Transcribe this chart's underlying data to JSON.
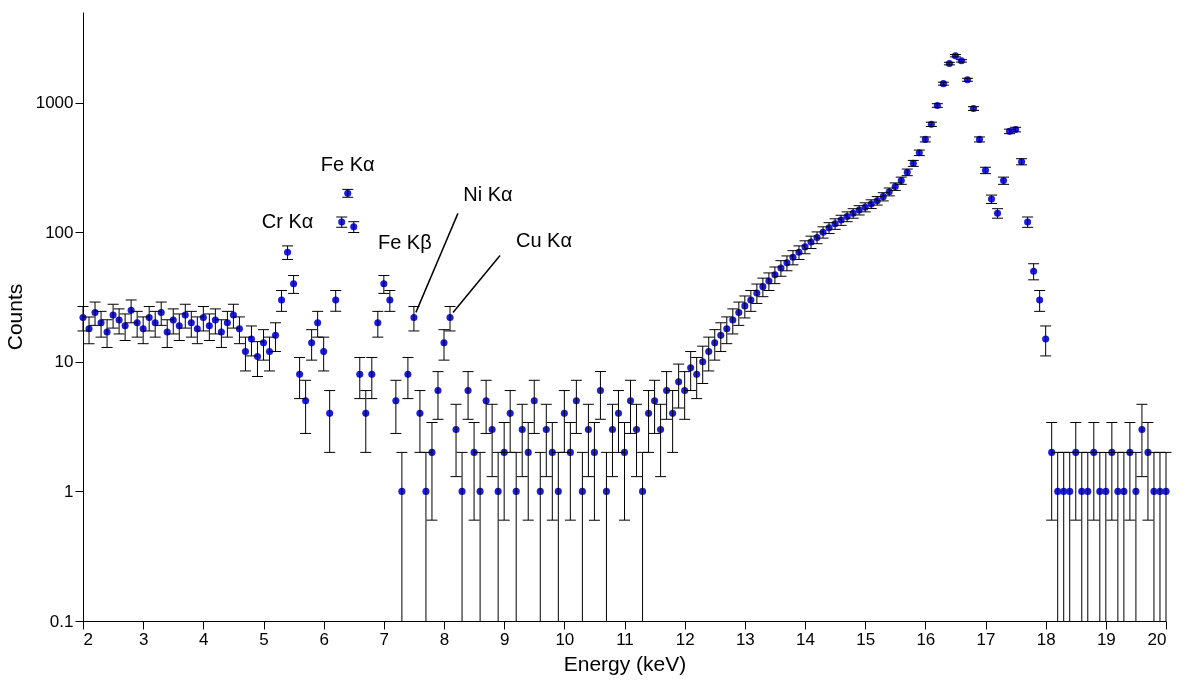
{
  "chart_data": {
    "type": "scatter",
    "xlabel": "Energy (keV)",
    "ylabel": "Counts",
    "log": "y",
    "marker": "circle",
    "xlim": [
      2,
      20
    ],
    "xticks": [
      2,
      3,
      4,
      5,
      6,
      7,
      8,
      9,
      10,
      11,
      12,
      13,
      14,
      15,
      16,
      17,
      18,
      19,
      20
    ],
    "ylim": [
      0.1,
      5000
    ],
    "yticks": [
      0.1,
      1,
      10,
      100,
      1000
    ],
    "x": [
      2.0,
      2.1,
      2.2,
      2.3,
      2.4,
      2.5,
      2.6,
      2.7,
      2.8,
      2.9,
      3.0,
      3.1,
      3.2,
      3.3,
      3.4,
      3.5,
      3.6,
      3.7,
      3.8,
      3.9,
      4.0,
      4.1,
      4.2,
      4.3,
      4.4,
      4.5,
      4.6,
      4.7,
      4.8,
      4.9,
      5.0,
      5.1,
      5.2,
      5.3,
      5.4,
      5.5,
      5.6,
      5.7,
      5.8,
      5.9,
      6.0,
      6.1,
      6.2,
      6.3,
      6.4,
      6.5,
      6.6,
      6.7,
      6.8,
      6.9,
      7.0,
      7.1,
      7.2,
      7.3,
      7.4,
      7.5,
      7.6,
      7.7,
      7.8,
      7.9,
      8.0,
      8.1,
      8.2,
      8.3,
      8.4,
      8.5,
      8.6,
      8.7,
      8.8,
      8.9,
      9.0,
      9.1,
      9.2,
      9.3,
      9.4,
      9.5,
      9.6,
      9.7,
      9.8,
      9.9,
      10.0,
      10.1,
      10.2,
      10.3,
      10.4,
      10.5,
      10.6,
      10.7,
      10.8,
      10.9,
      11.0,
      11.1,
      11.2,
      11.3,
      11.4,
      11.5,
      11.6,
      11.7,
      11.8,
      11.9,
      12.0,
      12.1,
      12.2,
      12.3,
      12.4,
      12.5,
      12.6,
      12.7,
      12.8,
      12.9,
      13.0,
      13.1,
      13.2,
      13.3,
      13.4,
      13.5,
      13.6,
      13.7,
      13.8,
      13.9,
      14.0,
      14.1,
      14.2,
      14.3,
      14.4,
      14.5,
      14.6,
      14.7,
      14.8,
      14.9,
      15.0,
      15.1,
      15.2,
      15.3,
      15.4,
      15.5,
      15.6,
      15.7,
      15.8,
      15.9,
      16.0,
      16.1,
      16.2,
      16.3,
      16.4,
      16.5,
      16.6,
      16.7,
      16.8,
      16.9,
      17.0,
      17.1,
      17.2,
      17.3,
      17.4,
      17.5,
      17.6,
      17.7,
      17.8,
      17.9,
      18.0,
      18.1,
      18.2,
      18.3,
      18.4,
      18.5,
      18.6,
      18.7,
      18.8,
      18.9,
      19.0,
      19.1,
      19.2,
      19.3,
      19.4,
      19.5,
      19.6,
      19.7,
      19.8,
      19.9,
      20.0
    ],
    "series": [
      {
        "color": "#1c1cdc",
        "values": [
          22,
          18,
          24,
          20,
          17,
          23,
          21,
          19,
          25,
          20,
          18,
          22,
          20,
          24,
          17,
          21,
          19,
          23,
          20,
          18,
          22,
          19,
          21,
          17,
          20,
          23,
          18,
          12,
          15,
          11,
          14,
          12,
          16,
          30,
          70,
          40,
          8,
          5,
          14,
          20,
          12,
          4,
          30,
          120,
          200,
          110,
          8,
          4,
          8,
          20,
          40,
          30,
          5,
          1,
          8,
          22,
          4,
          1,
          2,
          6,
          14,
          22,
          3,
          1,
          6,
          2,
          1,
          5,
          3,
          1,
          2,
          4,
          1,
          3,
          2,
          5,
          1,
          3,
          2,
          1,
          4,
          2,
          5,
          1,
          3,
          2,
          6,
          1,
          3,
          4,
          2,
          5,
          3,
          1,
          4,
          5,
          3,
          6,
          4,
          7,
          6,
          9,
          8,
          10,
          12,
          14,
          16,
          18,
          21,
          24,
          27,
          30,
          34,
          38,
          42,
          47,
          53,
          58,
          64,
          70,
          77,
          84,
          91,
          100,
          108,
          116,
          124,
          132,
          140,
          148,
          156,
          165,
          175,
          188,
          205,
          225,
          250,
          290,
          340,
          410,
          520,
          680,
          950,
          1400,
          2000,
          2300,
          2100,
          1500,
          900,
          520,
          300,
          180,
          140,
          250,
          600,
          620,
          350,
          120,
          50,
          30,
          15,
          2,
          1,
          1,
          1,
          2,
          1,
          1,
          2,
          1,
          1,
          2,
          1,
          1,
          2,
          1,
          3,
          2,
          1,
          1,
          1
        ],
        "errors": [
          4.7,
          4.2,
          4.9,
          4.5,
          4.1,
          4.8,
          4.6,
          4.4,
          5,
          4.5,
          4.2,
          4.7,
          4.5,
          4.9,
          4.1,
          4.6,
          4.4,
          4.8,
          4.5,
          4.2,
          4.7,
          4.4,
          4.6,
          4.1,
          4.5,
          4.8,
          4.2,
          3.5,
          3.9,
          3.3,
          3.7,
          3.5,
          4,
          5.5,
          8.4,
          6.3,
          2.8,
          2.2,
          3.7,
          4.5,
          3.5,
          2,
          5.5,
          11,
          14,
          10.5,
          2.8,
          2,
          2.8,
          4.5,
          6.3,
          5.5,
          2.2,
          [
            0.1,
            2
          ],
          2.8,
          4.7,
          2,
          [
            0.1,
            2
          ],
          1.4,
          2.4,
          3.7,
          4.7,
          1.7,
          [
            0.1,
            2
          ],
          2.4,
          1.4,
          [
            0.1,
            2
          ],
          2.2,
          1.7,
          [
            0.1,
            2
          ],
          1.4,
          2,
          [
            0.1,
            2
          ],
          1.7,
          1.4,
          2.2,
          [
            0.1,
            2
          ],
          1.7,
          1.4,
          [
            0.1,
            2
          ],
          2,
          1.4,
          2.2,
          [
            0.1,
            2
          ],
          1.7,
          1.4,
          2.4,
          [
            0.1,
            2
          ],
          1.7,
          2,
          1.4,
          2.2,
          1.7,
          [
            0.1,
            2
          ],
          2,
          2.2,
          1.7,
          2.4,
          2,
          2.6,
          2.4,
          3,
          2.8,
          3.2,
          3.5,
          3.7,
          4,
          4.2,
          4.6,
          4.9,
          5.2,
          5.5,
          5.8,
          6.2,
          6.5,
          6.9,
          7.3,
          7.6,
          8,
          8.4,
          8.8,
          9.2,
          9.5,
          10,
          10.4,
          10.8,
          11.1,
          11.5,
          11.8,
          12.2,
          12.5,
          12.8,
          13.2,
          13.7,
          14.3,
          15,
          16,
          17,
          18,
          20,
          23,
          26,
          31,
          37,
          45,
          48,
          46,
          39,
          30,
          23,
          17,
          13.4,
          11.8,
          16,
          24,
          25,
          19,
          11,
          7.1,
          5.5,
          3.9,
          1.4,
          [
            0.1,
            2
          ],
          [
            0.1,
            2
          ],
          [
            0.1,
            2
          ],
          1.4,
          [
            0.1,
            2
          ],
          [
            0.1,
            2
          ],
          1.4,
          [
            0.1,
            2
          ],
          [
            0.1,
            2
          ],
          1.4,
          [
            0.1,
            2
          ],
          [
            0.1,
            2
          ],
          1.4,
          [
            0.1,
            2
          ],
          1.7,
          1.4,
          [
            0.1,
            2
          ],
          [
            0.1,
            2
          ],
          [
            0.1,
            2
          ]
        ]
      }
    ],
    "annotations": [
      {
        "text": "Cr Kα",
        "x": 5.4,
        "y": 70
      },
      {
        "text": "Fe Kα",
        "x": 6.4,
        "y": 200
      },
      {
        "text": "Fe Kβ",
        "x": 7.0,
        "y": 40
      },
      {
        "text": "Ni Kα",
        "x": 7.5,
        "y": 22
      },
      {
        "text": "Cu Kα",
        "x": 8.1,
        "y": 22
      }
    ]
  }
}
